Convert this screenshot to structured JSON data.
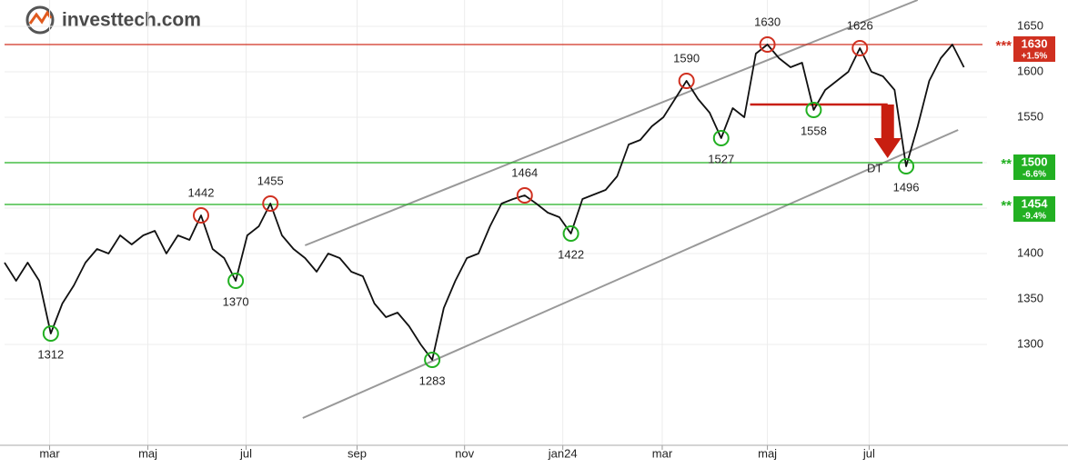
{
  "logo": "investtech.com",
  "chart_data": {
    "type": "line",
    "x": [
      0,
      1,
      2,
      3,
      4,
      5,
      6,
      7,
      8,
      9,
      10,
      11,
      12,
      13,
      14,
      15,
      16,
      17,
      18,
      19,
      20,
      21,
      22,
      23,
      24,
      25,
      26,
      27,
      28,
      29,
      30,
      31,
      32,
      33,
      34,
      35,
      36,
      37,
      38,
      39,
      40,
      41,
      42,
      43,
      44,
      45,
      46,
      47,
      48,
      49,
      50,
      51,
      52,
      53,
      54,
      55,
      56,
      57,
      58,
      59,
      60,
      61,
      62,
      63,
      64,
      65,
      66,
      67,
      68,
      69,
      70,
      71,
      72,
      73,
      74,
      75,
      76,
      77,
      78,
      79,
      80,
      81,
      82,
      83
    ],
    "series": [
      {
        "color": "#111111",
        "values": [
          1390,
          1370,
          1390,
          1370,
          1312,
          1345,
          1365,
          1390,
          1405,
          1400,
          1420,
          1410,
          1420,
          1425,
          1400,
          1420,
          1415,
          1442,
          1405,
          1395,
          1370,
          1420,
          1430,
          1455,
          1420,
          1405,
          1395,
          1380,
          1400,
          1395,
          1380,
          1375,
          1345,
          1330,
          1335,
          1320,
          1300,
          1283,
          1340,
          1370,
          1395,
          1400,
          1430,
          1455,
          1460,
          1464,
          1455,
          1445,
          1440,
          1422,
          1460,
          1465,
          1470,
          1485,
          1520,
          1525,
          1540,
          1550,
          1570,
          1590,
          1570,
          1555,
          1527,
          1560,
          1550,
          1620,
          1630,
          1615,
          1605,
          1610,
          1558,
          1580,
          1590,
          1600,
          1626,
          1600,
          1595,
          1580,
          1496,
          1540,
          1590,
          1615,
          1630,
          1605
        ]
      }
    ],
    "xlim": [
      0,
      85
    ],
    "xticks": [
      {
        "value": 3.9,
        "label": "mar"
      },
      {
        "value": 12.4,
        "label": "maj"
      },
      {
        "value": 20.9,
        "label": "jul"
      },
      {
        "value": 30.5,
        "label": "sep"
      },
      {
        "value": 39.8,
        "label": "nov"
      },
      {
        "value": 48.3,
        "label": "jan24"
      },
      {
        "value": 56.9,
        "label": "mar"
      },
      {
        "value": 66,
        "label": "maj"
      },
      {
        "value": 74.8,
        "label": "jul"
      }
    ],
    "ylim": [
      1189,
      1679
    ],
    "yticks": [
      1300,
      1350,
      1400,
      1450,
      1500,
      1550,
      1600,
      1650
    ],
    "grid": true,
    "tops": {
      "color": "#d03020",
      "x": [
        17,
        23,
        45,
        59,
        66,
        74
      ],
      "values": [
        1442,
        1455,
        1464,
        1590,
        1630,
        1626
      ]
    },
    "bottoms": {
      "color": "#22b022",
      "x": [
        4,
        20,
        37,
        49,
        62,
        70,
        78
      ],
      "values": [
        1312,
        1370,
        1283,
        1422,
        1527,
        1558,
        1496
      ]
    },
    "levels": [
      {
        "value": 1630,
        "color": "#d03020",
        "stars": "***",
        "change": "+1.5%"
      },
      {
        "value": 1500,
        "color": "#22b022",
        "stars": "**",
        "change": "-6.6%"
      },
      {
        "value": 1454,
        "color": "#22b022",
        "stars": "**",
        "change": "-9.4%"
      }
    ],
    "trend_lines": [
      {
        "color": "#999999",
        "x": [
          26,
          79
        ],
        "values": [
          1409,
          1679
        ]
      },
      {
        "color": "#999999",
        "x": [
          25.8,
          82.5
        ],
        "values": [
          1219,
          1536
        ]
      }
    ],
    "signal": {
      "label": "DT",
      "color": "#c81e10",
      "x": [
        64.5,
        76.4
      ],
      "values": [
        1564,
        1505
      ]
    }
  }
}
